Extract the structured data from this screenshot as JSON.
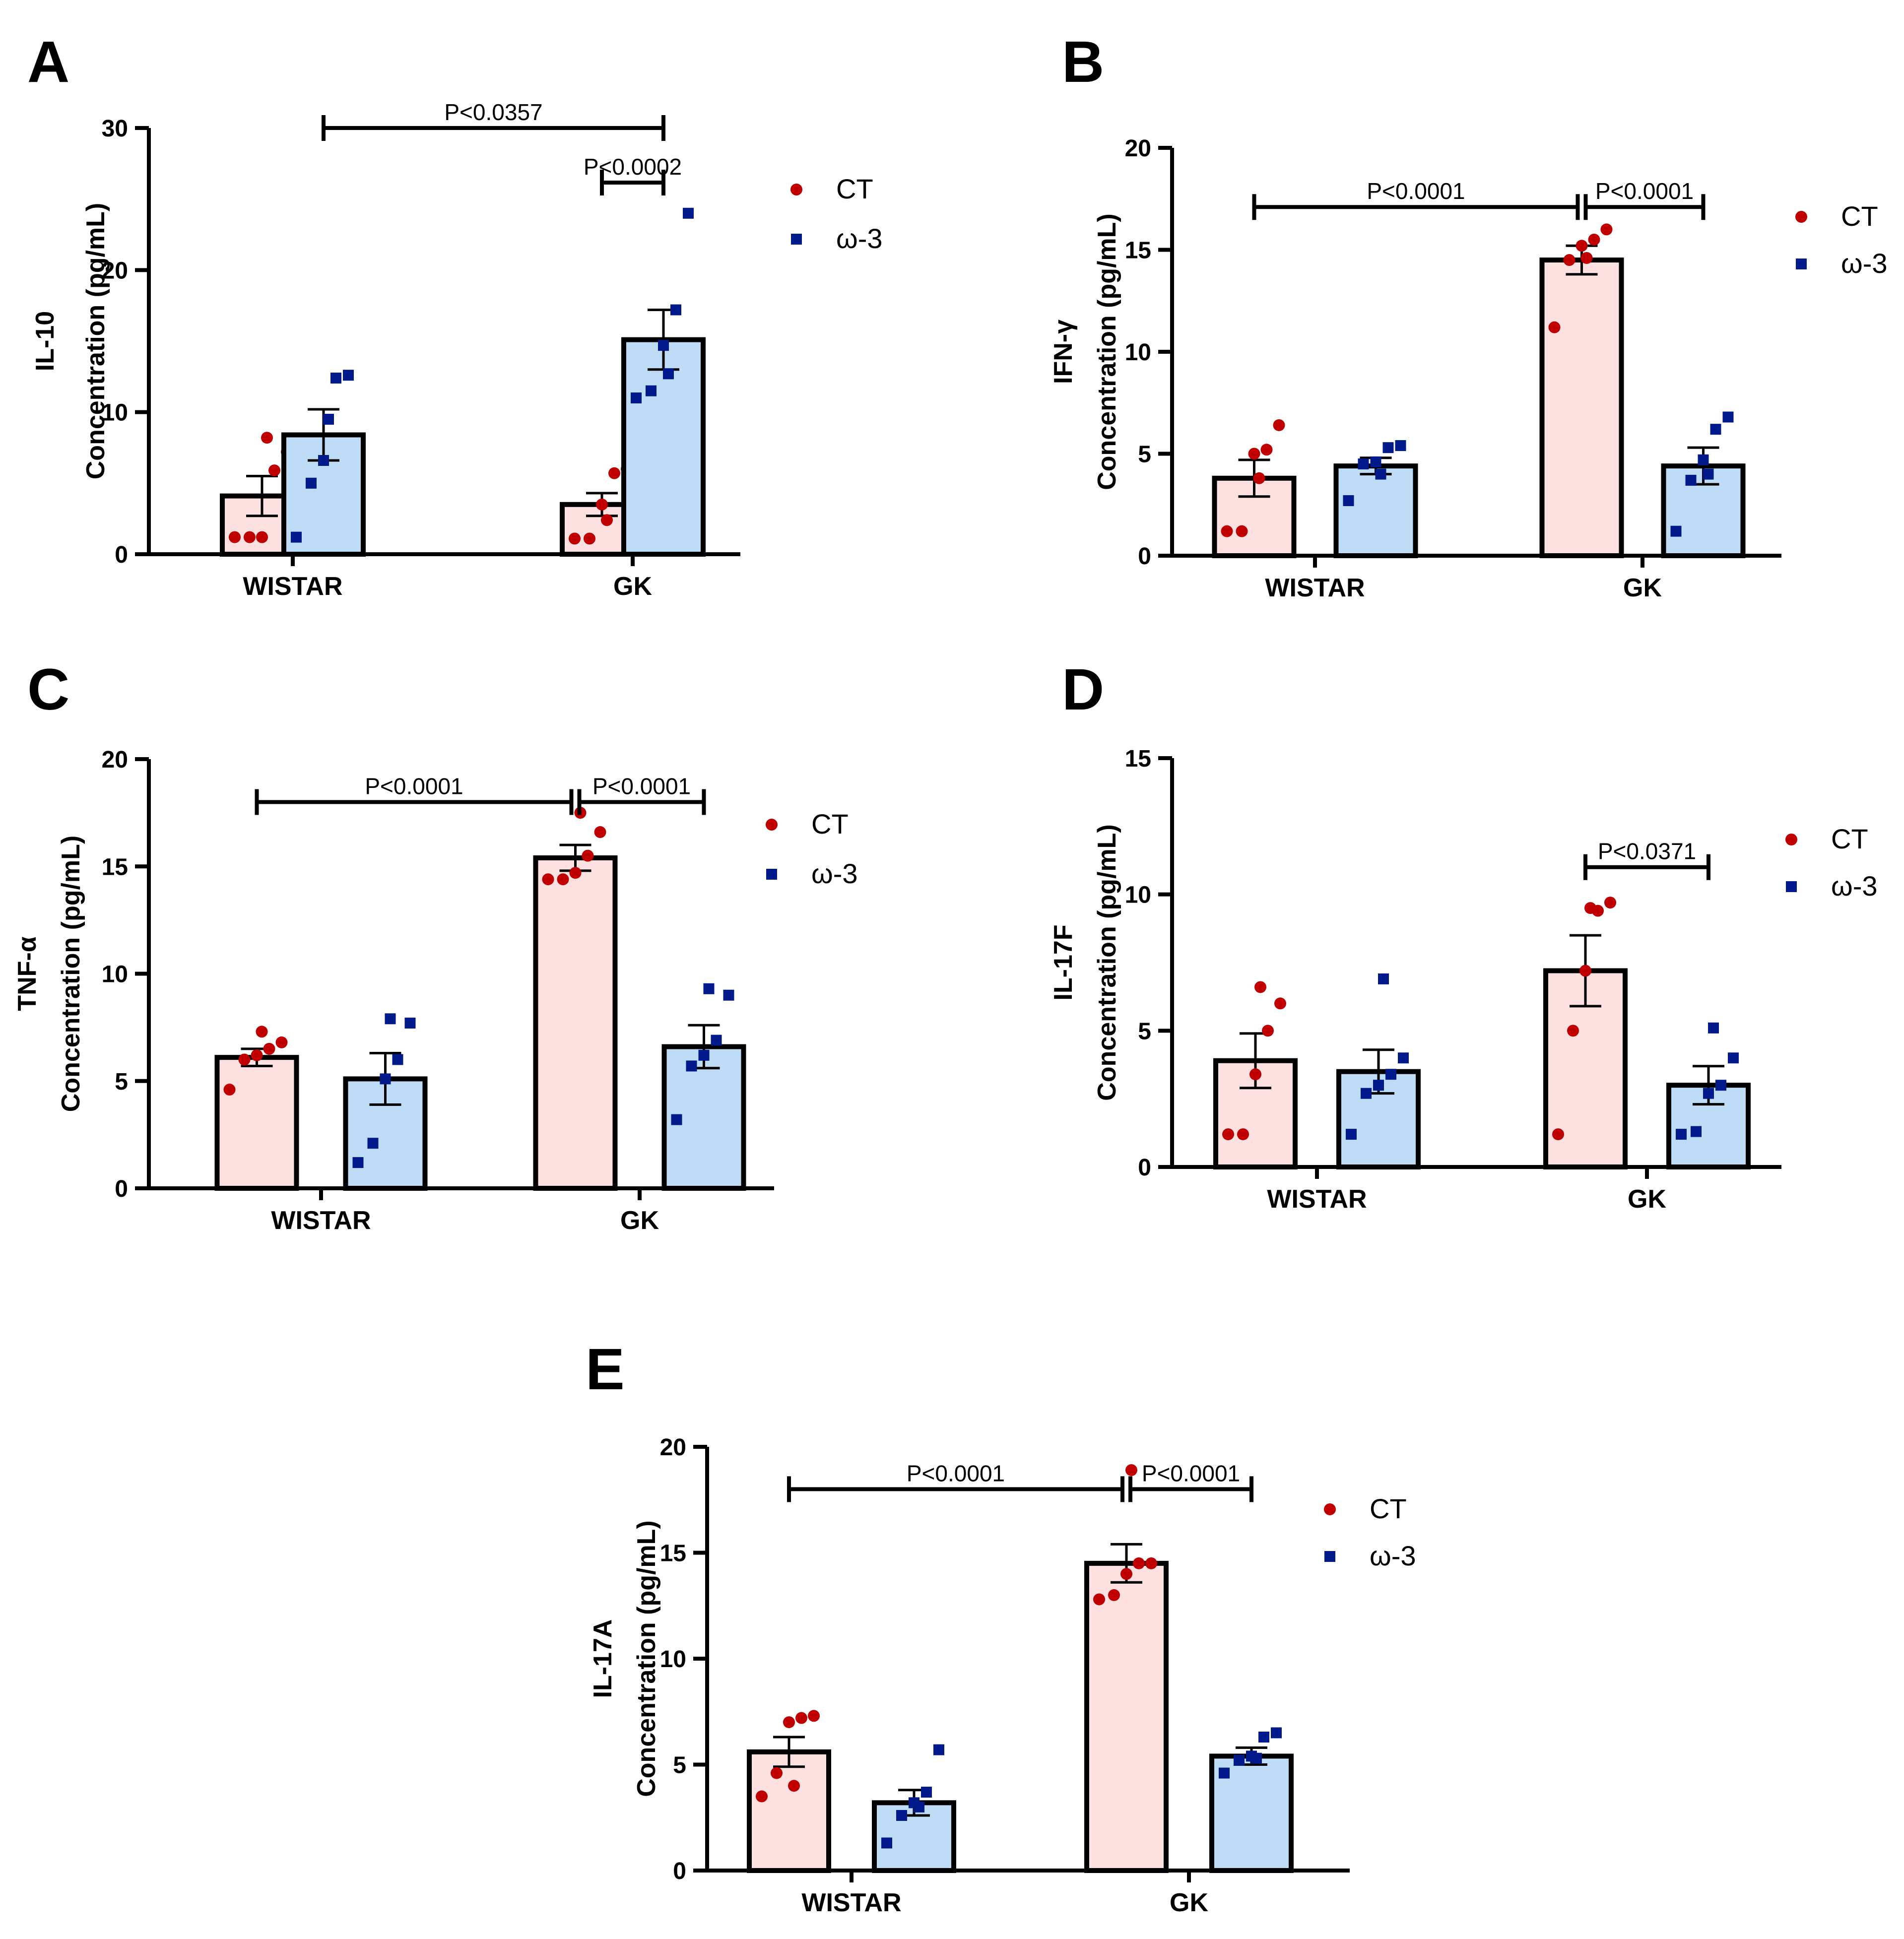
{
  "colors": {
    "ct_point": "#c00000",
    "omega_point": "#001a8c",
    "ct_bar": "#fde0e0",
    "omega_bar": "#bfdcf7",
    "axis": "#000000"
  },
  "chart_data": [
    {
      "panel": "A",
      "type": "bar",
      "categories": [
        "WISTAR",
        "GK"
      ],
      "ylabel_top": "IL-10",
      "ylabel_bottom": "Concentration (pg/mL)",
      "ylim": [
        0,
        30
      ],
      "yticks": [
        0,
        10,
        20,
        30
      ],
      "legend": [
        "CT",
        "ω-3"
      ],
      "series": [
        {
          "name": "CT",
          "values": [
            4.1,
            3.5
          ],
          "sem": [
            1.4,
            0.8
          ],
          "points": [
            [
              1.2,
              1.2,
              1.2,
              5.9,
              7.2,
              8.2
            ],
            [
              1.1,
              1.1,
              3.5,
              5.7,
              6.0,
              2.4
            ]
          ]
        },
        {
          "name": "ω-3",
          "values": [
            8.4,
            15.1
          ],
          "sem": [
            1.8,
            2.1
          ],
          "points": [
            [
              1.2,
              5.0,
              6.6,
              12.4,
              12.6,
              9.5
            ],
            [
              11.0,
              11.5,
              14.7,
              17.2,
              24.0,
              12.7
            ]
          ]
        }
      ],
      "comparisons": [
        {
          "label": "P<0.0357",
          "from": [
            0,
            1
          ],
          "to": [
            1,
            1
          ]
        },
        {
          "label": "P<0.0002",
          "from": [
            1,
            0
          ],
          "to": [
            1,
            1
          ]
        }
      ]
    },
    {
      "panel": "B",
      "type": "bar",
      "categories": [
        "WISTAR",
        "GK"
      ],
      "ylabel_top": "IFN-γ",
      "ylabel_bottom": "Concentration (pg/mL)",
      "ylim": [
        0,
        20
      ],
      "yticks": [
        0,
        5,
        10,
        15,
        20
      ],
      "legend": [
        "CT",
        "ω-3"
      ],
      "series": [
        {
          "name": "CT",
          "values": [
            3.8,
            14.5
          ],
          "sem": [
            0.9,
            0.7
          ],
          "points": [
            [
              1.2,
              1.2,
              5.0,
              5.2,
              6.4,
              3.8
            ],
            [
              11.2,
              14.5,
              15.2,
              15.5,
              16.0,
              14.6
            ]
          ]
        },
        {
          "name": "ω-3",
          "values": [
            4.4,
            4.4
          ],
          "sem": [
            0.4,
            0.9
          ],
          "points": [
            [
              2.7,
              4.5,
              4.6,
              5.3,
              5.4,
              4.0
            ],
            [
              1.2,
              3.7,
              4.7,
              6.2,
              6.8,
              4.0
            ]
          ]
        }
      ],
      "comparisons": [
        {
          "label": "P<0.0001",
          "from": [
            0,
            0
          ],
          "to": [
            1,
            0
          ]
        },
        {
          "label": "P<0.0001",
          "from": [
            1,
            0
          ],
          "to": [
            1,
            1
          ]
        }
      ]
    },
    {
      "panel": "C",
      "type": "bar",
      "categories": [
        "WISTAR",
        "GK"
      ],
      "ylabel_top": "TNF-α",
      "ylabel_bottom": "Concentration (pg/mL)",
      "ylim": [
        0,
        20
      ],
      "yticks": [
        0,
        5,
        10,
        15,
        20
      ],
      "legend": [
        "CT",
        "ω-3"
      ],
      "series": [
        {
          "name": "CT",
          "values": [
            6.1,
            15.4
          ],
          "sem": [
            0.4,
            0.6
          ],
          "points": [
            [
              4.6,
              6.0,
              6.2,
              6.5,
              6.8,
              7.3
            ],
            [
              14.4,
              14.4,
              14.7,
              15.5,
              16.6,
              17.5
            ]
          ]
        },
        {
          "name": "ω-3",
          "values": [
            5.1,
            6.6
          ],
          "sem": [
            1.2,
            1.0
          ],
          "points": [
            [
              1.2,
              2.1,
              5.1,
              6.0,
              7.7,
              7.9
            ],
            [
              3.2,
              5.7,
              6.2,
              6.9,
              9.0,
              9.3
            ]
          ]
        }
      ],
      "comparisons": [
        {
          "label": "P<0.0001",
          "from": [
            0,
            0
          ],
          "to": [
            1,
            0
          ]
        },
        {
          "label": "P<0.0001",
          "from": [
            1,
            0
          ],
          "to": [
            1,
            1
          ]
        }
      ]
    },
    {
      "panel": "D",
      "type": "bar",
      "categories": [
        "WISTAR",
        "GK"
      ],
      "ylabel_top": "IL-17F",
      "ylabel_bottom": "Concentration (pg/mL)",
      "ylim": [
        0,
        15
      ],
      "yticks": [
        0,
        5,
        10,
        15
      ],
      "legend": [
        "CT",
        "ω-3"
      ],
      "series": [
        {
          "name": "CT",
          "values": [
            3.9,
            7.2
          ],
          "sem": [
            1.0,
            1.3
          ],
          "points": [
            [
              1.2,
              1.2,
              3.4,
              5.0,
              6.0,
              6.6
            ],
            [
              1.2,
              5.0,
              7.2,
              9.4,
              9.7,
              9.5
            ]
          ]
        },
        {
          "name": "ω-3",
          "values": [
            3.5,
            3.0
          ],
          "sem": [
            0.8,
            0.7
          ],
          "points": [
            [
              1.2,
              2.7,
              3.0,
              3.4,
              4.0,
              6.9
            ],
            [
              1.2,
              1.3,
              2.7,
              3.0,
              4.0,
              5.1
            ]
          ]
        }
      ],
      "comparisons": [
        {
          "label": "P<0.0371",
          "from": [
            1,
            0
          ],
          "to": [
            1,
            1
          ]
        }
      ]
    },
    {
      "panel": "E",
      "type": "bar",
      "categories": [
        "WISTAR",
        "GK"
      ],
      "ylabel_top": "IL-17A",
      "ylabel_bottom": "Concentration (pg/mL)",
      "ylim": [
        0,
        20
      ],
      "yticks": [
        0,
        5,
        10,
        15,
        20
      ],
      "legend": [
        "CT",
        "ω-3"
      ],
      "series": [
        {
          "name": "CT",
          "values": [
            5.6,
            14.5
          ],
          "sem": [
            0.7,
            0.9
          ],
          "points": [
            [
              3.5,
              4.6,
              7.0,
              7.2,
              7.3,
              4.0
            ],
            [
              12.8,
              13.0,
              14.0,
              14.5,
              14.5,
              18.9
            ]
          ]
        },
        {
          "name": "ω-3",
          "values": [
            3.2,
            5.4
          ],
          "sem": [
            0.6,
            0.4
          ],
          "points": [
            [
              1.3,
              2.6,
              3.2,
              3.7,
              5.7,
              3.0
            ],
            [
              4.6,
              5.2,
              5.4,
              6.3,
              6.5,
              5.3
            ]
          ]
        }
      ],
      "comparisons": [
        {
          "label": "P<0.0001",
          "from": [
            0,
            0
          ],
          "to": [
            1,
            0
          ]
        },
        {
          "label": "P<0.0001",
          "from": [
            1,
            0
          ],
          "to": [
            1,
            1
          ]
        }
      ]
    }
  ]
}
